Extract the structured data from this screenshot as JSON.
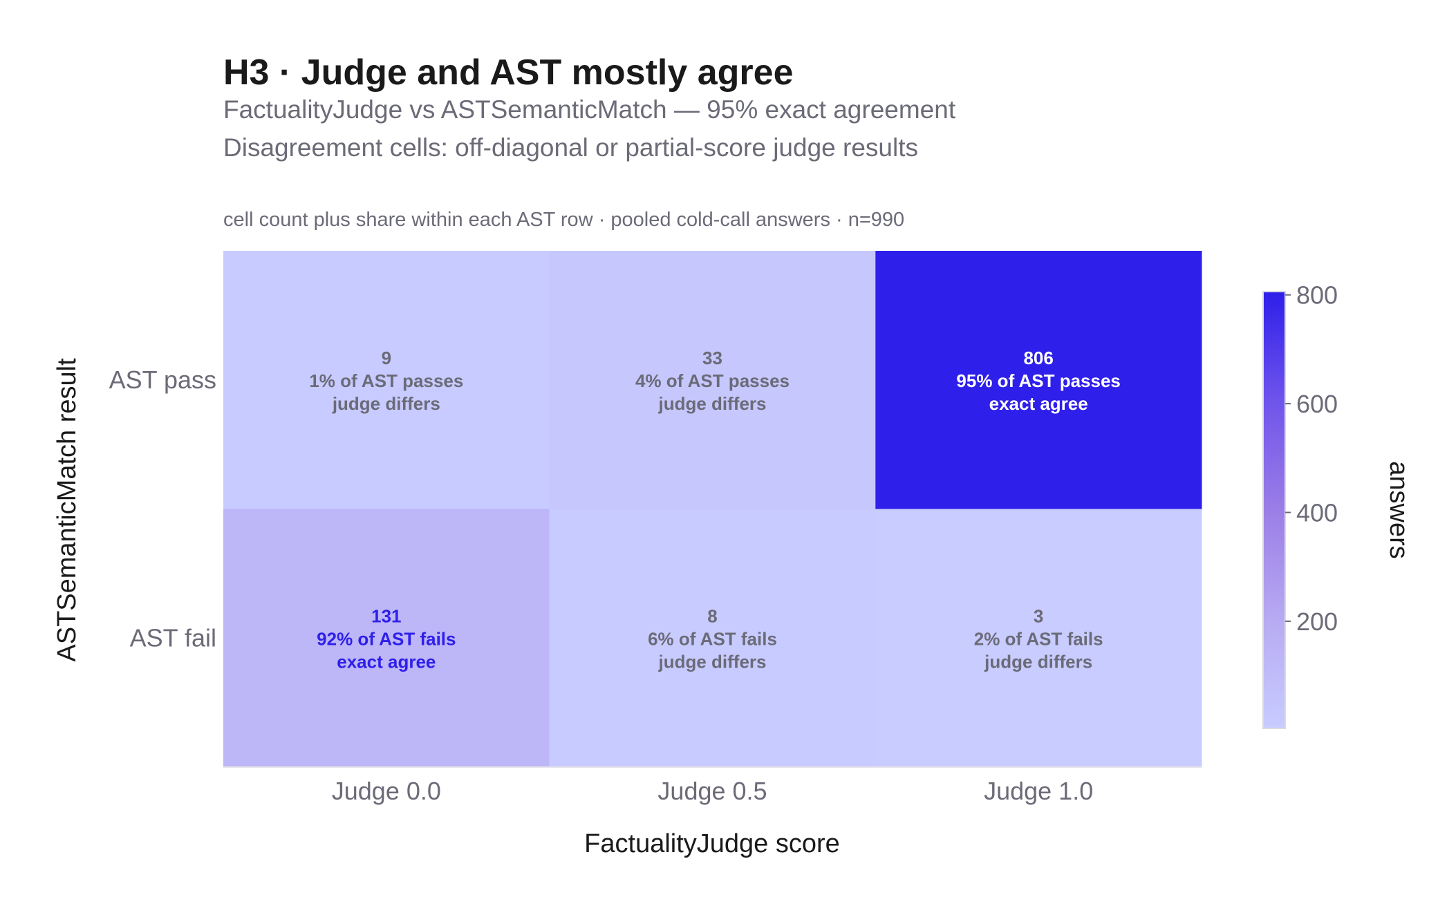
{
  "chart_data": {
    "type": "heatmap",
    "title": "H3 · Judge and AST mostly agree",
    "subtitle_lines": [
      "FactualityJudge vs ASTSemanticMatch — 95% exact agreement",
      "Disagreement cells: off-diagonal or partial-score judge results"
    ],
    "caption": "cell count plus share within each AST row · pooled cold-call answers · n=990",
    "xlabel": "FactualityJudge score",
    "ylabel": "ASTSemanticMatch result",
    "x_categories": [
      "Judge 0.0",
      "Judge 0.5",
      "Judge 1.0"
    ],
    "y_categories": [
      "AST pass",
      "AST fail"
    ],
    "values": [
      [
        9,
        33,
        806
      ],
      [
        131,
        8,
        3
      ]
    ],
    "cell_labels": [
      [
        {
          "count": "9",
          "share": "1% of AST passes",
          "note": "judge differs"
        },
        {
          "count": "33",
          "share": "4% of AST passes",
          "note": "judge differs"
        },
        {
          "count": "806",
          "share": "95% of AST passes",
          "note": "exact agree"
        }
      ],
      [
        {
          "count": "131",
          "share": "92% of AST fails",
          "note": "exact agree"
        },
        {
          "count": "8",
          "share": "6% of AST fails",
          "note": "judge differs"
        },
        {
          "count": "3",
          "share": "2% of AST fails",
          "note": "judge differs"
        }
      ]
    ],
    "colorbar": {
      "title": "answers",
      "range": [
        3,
        806
      ],
      "ticks": [
        200,
        400,
        600,
        800
      ],
      "tick_labels": [
        "200",
        "400",
        "600",
        "800"
      ],
      "colorscale": [
        "#c8ccff",
        "#b7aaf2",
        "#9b7ee6",
        "#6f54ec",
        "#2e1fea"
      ]
    },
    "colors": {
      "text_dark": "#1a1a1a",
      "text_muted": "#6b6b78",
      "label_on_light": "#6b6b78",
      "label_on_dark": "#ffffff",
      "label_agree_light": "#2e1fea"
    }
  }
}
